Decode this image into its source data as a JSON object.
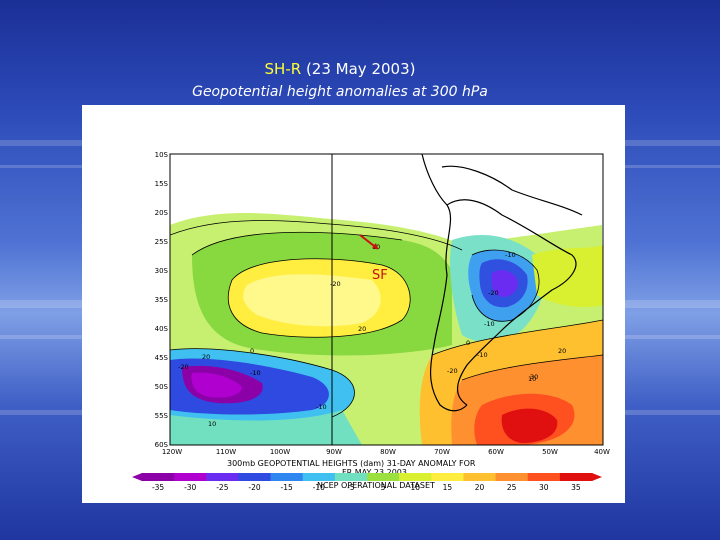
{
  "title": {
    "tag": "SH-R",
    "date_text": "(23 May 2003)",
    "subtitle": "Geopotential height anomalies at 300 hPa"
  },
  "map": {
    "lat_labels": [
      "10S",
      "15S",
      "20S",
      "25S",
      "30S",
      "35S",
      "40S",
      "45S",
      "50S",
      "55S",
      "60S"
    ],
    "lon_labels": [
      "120W",
      "110W",
      "100W",
      "90W",
      "80W",
      "70W",
      "60W",
      "50W",
      "40W"
    ],
    "contour_labels": [
      "10",
      "-10",
      "-20",
      "-20",
      "20",
      "0",
      "-10",
      "0",
      "-10",
      "20",
      "-20",
      "-10",
      "10",
      "-10",
      "30",
      "-20",
      "10",
      "20"
    ],
    "feature_label": "SF",
    "caption_line1": "300mb GEOPOTENTIAL HEIGHTS (dam) 31-DAY ANOMALY FOR",
    "caption_line2": "FR MAY 23 2003",
    "caption_line3": "NCEP OPERATIONAL DATASET",
    "colorbar_labels": [
      "-35",
      "-30",
      "-25",
      "-20",
      "-15",
      "-10",
      "-5",
      "5",
      "10",
      "15",
      "20",
      "25",
      "30",
      "35"
    ],
    "colorbar_colors": [
      "#8c00a8",
      "#b000d0",
      "#6a2cf0",
      "#2f4ae0",
      "#2f86f0",
      "#40c0f0",
      "#70e0c0",
      "#9ce040",
      "#d8f030",
      "#ffee40",
      "#ffc030",
      "#ff9030",
      "#ff5020",
      "#e01010"
    ]
  }
}
